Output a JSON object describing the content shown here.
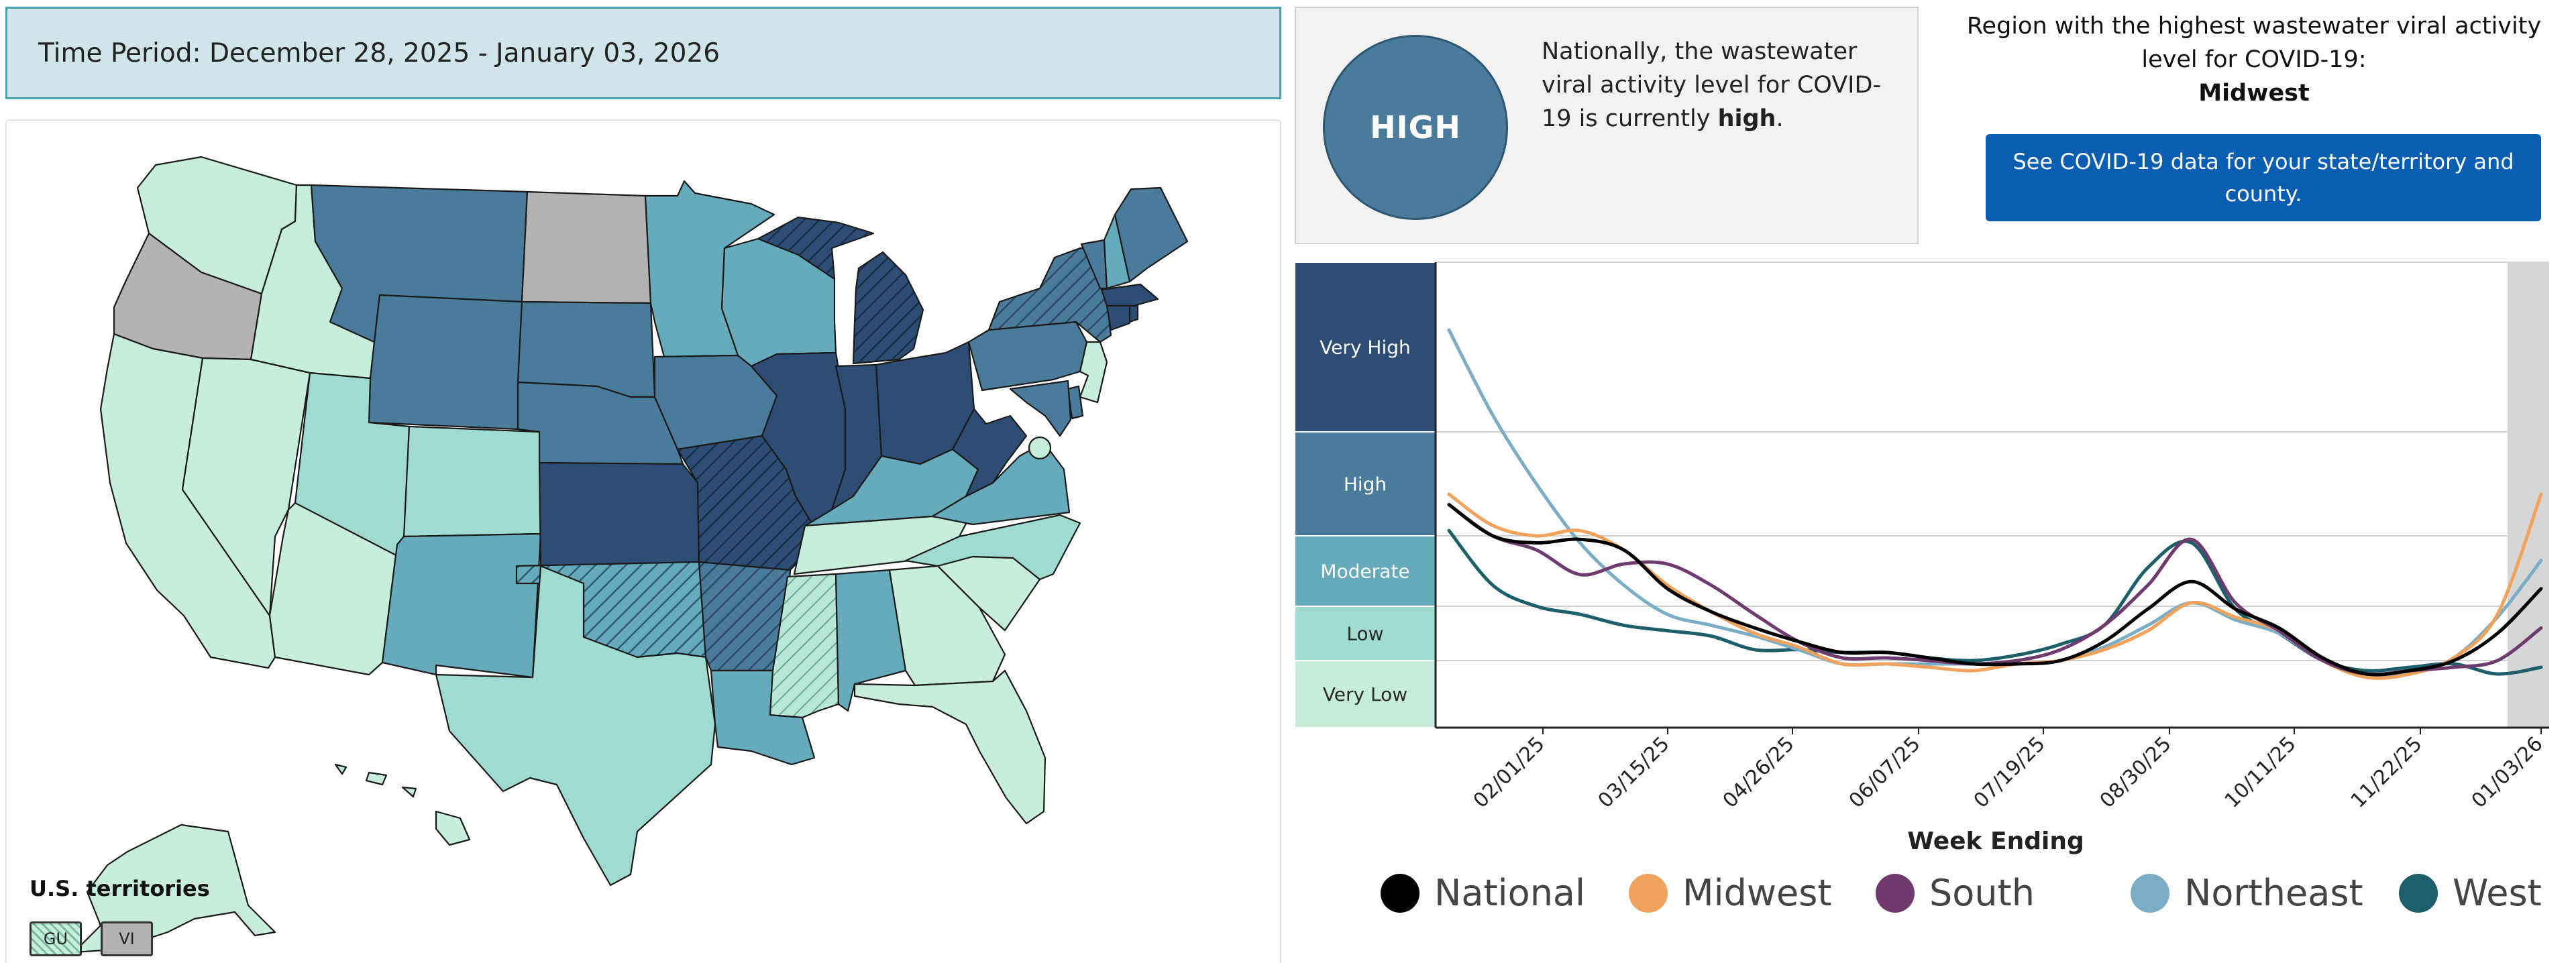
{
  "time_period": "Time Period: December 28, 2025 - January 03, 2026",
  "national": {
    "level_badge": "HIGH",
    "text_before": "Nationally, the wastewater viral activity level for COVID-19 is currently ",
    "text_level": "high",
    "text_after": "."
  },
  "region": {
    "heading": "Region with the highest wastewater viral activity level for COVID-19:",
    "name": "Midwest"
  },
  "state_button_label": "See COVID-19 data for your state/territory and county.",
  "map": {
    "territories_title": "U.S. territories",
    "territories": [
      {
        "code": "GU",
        "level": "Very Low",
        "hatched": true
      },
      {
        "code": "VI",
        "level": "No Data",
        "hatched": false
      }
    ],
    "level_colors": {
      "Very High": "#2e4d74",
      "High": "#4a7b9a",
      "Moderate": "#66abbb",
      "Low": "#9fdbd0",
      "Very Low": "#c7eedb",
      "No Data": "#b3b3b3"
    },
    "states": [
      {
        "id": "WA",
        "level": "Very Low"
      },
      {
        "id": "OR",
        "level": "No Data"
      },
      {
        "id": "CA",
        "level": "Very Low"
      },
      {
        "id": "ID",
        "level": "Very Low"
      },
      {
        "id": "NV",
        "level": "Very Low"
      },
      {
        "id": "AZ",
        "level": "Very Low"
      },
      {
        "id": "MT",
        "level": "High"
      },
      {
        "id": "WY",
        "level": "High"
      },
      {
        "id": "UT",
        "level": "Low"
      },
      {
        "id": "CO",
        "level": "Low"
      },
      {
        "id": "NM",
        "level": "Moderate"
      },
      {
        "id": "ND",
        "level": "No Data"
      },
      {
        "id": "SD",
        "level": "High"
      },
      {
        "id": "NE",
        "level": "High"
      },
      {
        "id": "KS",
        "level": "Very High"
      },
      {
        "id": "OK",
        "level": "Moderate",
        "hatched": true
      },
      {
        "id": "TX",
        "level": "Low"
      },
      {
        "id": "MN",
        "level": "Moderate"
      },
      {
        "id": "IA",
        "level": "High"
      },
      {
        "id": "MO",
        "level": "Very High",
        "hatched": true
      },
      {
        "id": "AR",
        "level": "High",
        "hatched": true
      },
      {
        "id": "LA",
        "level": "Moderate"
      },
      {
        "id": "WI",
        "level": "Moderate"
      },
      {
        "id": "IL",
        "level": "Very High"
      },
      {
        "id": "MI",
        "level": "Very High",
        "hatched": true
      },
      {
        "id": "IN",
        "level": "Very High"
      },
      {
        "id": "OH",
        "level": "Very High"
      },
      {
        "id": "KY",
        "level": "Moderate"
      },
      {
        "id": "TN",
        "level": "Very Low"
      },
      {
        "id": "MS",
        "level": "Low",
        "hatched": true
      },
      {
        "id": "AL",
        "level": "Moderate"
      },
      {
        "id": "GA",
        "level": "Very Low"
      },
      {
        "id": "FL",
        "level": "Very Low"
      },
      {
        "id": "SC",
        "level": "Very Low"
      },
      {
        "id": "NC",
        "level": "Low"
      },
      {
        "id": "VA",
        "level": "Moderate"
      },
      {
        "id": "WV",
        "level": "Very High"
      },
      {
        "id": "PA",
        "level": "High"
      },
      {
        "id": "NY",
        "level": "High",
        "hatched": true
      },
      {
        "id": "VT",
        "level": "High"
      },
      {
        "id": "NH",
        "level": "Moderate"
      },
      {
        "id": "ME",
        "level": "High"
      },
      {
        "id": "MA",
        "level": "Very High"
      },
      {
        "id": "CT",
        "level": "Very High"
      },
      {
        "id": "RI",
        "level": "Very High"
      },
      {
        "id": "NJ",
        "level": "Very Low"
      },
      {
        "id": "DE",
        "level": "High"
      },
      {
        "id": "MD",
        "level": "High"
      },
      {
        "id": "DC",
        "level": "Very Low"
      },
      {
        "id": "AK",
        "level": "Very Low"
      },
      {
        "id": "HI",
        "level": "Very Low"
      }
    ]
  },
  "chart_data": {
    "type": "line",
    "xlabel": "Week Ending",
    "x_ticks": [
      "02/01/25",
      "03/15/25",
      "04/26/25",
      "06/07/25",
      "07/19/25",
      "08/30/25",
      "10/11/25",
      "11/22/25",
      "01/03/26"
    ],
    "levels": [
      "Very High",
      "High",
      "Moderate",
      "Low",
      "Very Low"
    ],
    "highlight": "most recent week (12/28/25 - 01/03/26)",
    "series": [
      {
        "name": "National",
        "color": "#000000",
        "values": [
          3.3,
          3.0,
          2.9,
          2.95,
          2.8,
          2.25,
          1.9,
          1.6,
          1.35,
          1.15,
          1.15,
          1.05,
          0.95,
          0.95,
          1.0,
          1.35,
          1.95,
          2.35,
          1.95,
          1.6,
          1.05,
          0.8,
          0.85,
          1.0,
          1.5,
          2.25
        ]
      },
      {
        "name": "Midwest",
        "color": "#f0a35c",
        "values": [
          3.4,
          3.1,
          3.0,
          3.05,
          2.8,
          2.3,
          1.9,
          1.5,
          1.25,
          0.95,
          0.95,
          0.9,
          0.85,
          0.95,
          1.0,
          1.2,
          1.55,
          2.05,
          1.8,
          1.55,
          1.0,
          0.75,
          0.8,
          1.05,
          1.85,
          3.4
        ]
      },
      {
        "name": "South",
        "color": "#6f3b6e",
        "values": [
          3.3,
          3.0,
          2.8,
          2.45,
          2.6,
          2.6,
          2.3,
          1.85,
          1.35,
          1.05,
          1.05,
          1.0,
          0.95,
          1.0,
          1.2,
          1.65,
          2.3,
          2.95,
          2.05,
          1.55,
          1.0,
          0.8,
          0.85,
          0.9,
          1.0,
          1.6
        ]
      },
      {
        "name": "Northeast",
        "color": "#7cadc6",
        "values": [
          4.6,
          4.1,
          3.5,
          2.9,
          2.3,
          1.85,
          1.65,
          1.45,
          1.2,
          0.95,
          0.95,
          0.95,
          0.95,
          0.95,
          1.0,
          1.25,
          1.65,
          2.05,
          1.75,
          1.5,
          1.0,
          0.8,
          0.8,
          1.05,
          1.8,
          2.65
        ]
      },
      {
        "name": "West",
        "color": "#1c5f6b",
        "values": [
          3.05,
          2.3,
          2.0,
          1.85,
          1.65,
          1.55,
          1.45,
          1.2,
          1.2,
          1.15,
          1.15,
          1.05,
          1.0,
          1.1,
          1.3,
          1.65,
          2.55,
          2.9,
          1.95,
          1.5,
          1.0,
          0.85,
          0.9,
          0.95,
          0.8,
          0.9
        ]
      }
    ]
  }
}
